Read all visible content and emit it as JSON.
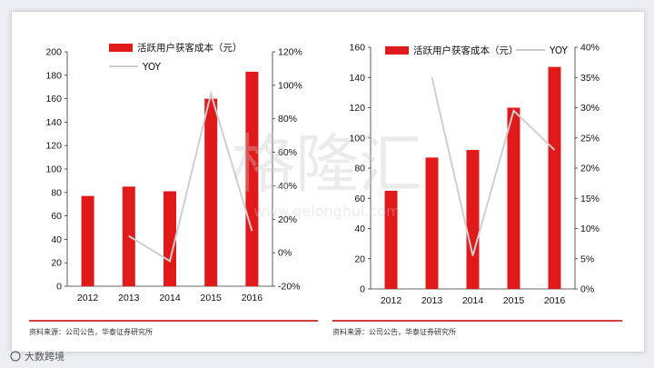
{
  "colors": {
    "bar": "#e0191b",
    "line": "#cfcfcf",
    "rule": "#c00000"
  },
  "chart_data": [
    {
      "type": "bar",
      "categories": [
        "2012",
        "2013",
        "2014",
        "2015",
        "2016"
      ],
      "series": [
        {
          "name": "活跃用户获客成本（元）",
          "kind": "bar",
          "axis": "left",
          "values": [
            77,
            85,
            81,
            160,
            183
          ]
        },
        {
          "name": "YOY",
          "kind": "line",
          "axis": "right",
          "values": [
            null,
            10,
            -5,
            95,
            13
          ]
        }
      ],
      "yleft": {
        "min": 0,
        "max": 200,
        "step": 20,
        "ticks": [
          "0",
          "20",
          "40",
          "60",
          "80",
          "100",
          "120",
          "140",
          "160",
          "180",
          "200"
        ]
      },
      "yright": {
        "min": -20,
        "max": 120,
        "step": 20,
        "ticks": [
          "-20%",
          "0%",
          "20%",
          "40%",
          "60%",
          "80%",
          "100%",
          "120%"
        ]
      },
      "source": "资料来源：公司公告，华泰证券研究所"
    },
    {
      "type": "bar",
      "categories": [
        "2012",
        "2013",
        "2014",
        "2015",
        "2016"
      ],
      "series": [
        {
          "name": "活跃用户获客成本（元）",
          "kind": "bar",
          "axis": "left",
          "values": [
            65,
            87,
            92,
            120,
            147
          ]
        },
        {
          "name": "YOY",
          "kind": "line",
          "axis": "right",
          "values": [
            null,
            35,
            5.5,
            29.5,
            23
          ]
        }
      ],
      "yleft": {
        "min": 0,
        "max": 160,
        "step": 20,
        "ticks": [
          "0",
          "20",
          "40",
          "60",
          "80",
          "100",
          "120",
          "140",
          "160"
        ]
      },
      "yright": {
        "min": 0,
        "max": 40,
        "step": 5,
        "ticks": [
          "0%",
          "5%",
          "10%",
          "15%",
          "20%",
          "25%",
          "30%",
          "35%",
          "40%"
        ]
      },
      "source": "资料来源：公司公告，华泰证券研究所"
    }
  ],
  "watermark": {
    "text": "格隆汇",
    "url": "www.gelonghui.com"
  },
  "brand": "大数跨境"
}
